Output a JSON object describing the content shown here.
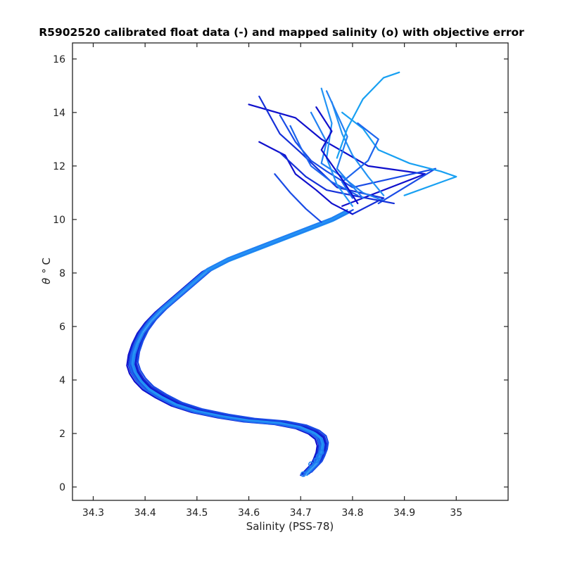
{
  "chart_data": {
    "type": "line",
    "title": "R5902520 calibrated float data (-) and mapped salinity (o) with objective error",
    "xlabel": "Salinity (PSS-78)",
    "ylabel_symbol": "θ",
    "ylabel_unit": "° C",
    "xlim": [
      34.26,
      35.1
    ],
    "ylim": [
      -0.5,
      16.6
    ],
    "xticks": [
      34.3,
      34.4,
      34.5,
      34.6,
      34.7,
      34.8,
      34.9,
      35
    ],
    "xtick_labels": [
      "34.3",
      "34.4",
      "34.5",
      "34.6",
      "34.7",
      "34.8",
      "34.9",
      "35"
    ],
    "yticks": [
      0,
      2,
      4,
      6,
      8,
      10,
      12,
      14,
      16
    ],
    "ytick_labels": [
      "0",
      "2",
      "4",
      "6",
      "8",
      "10",
      "12",
      "14",
      "16"
    ],
    "grid": false,
    "colors": [
      "#1010cc",
      "#1530d8",
      "#1a4ce6",
      "#1e66ee",
      "#2180f2",
      "#2394f4",
      "#18a0f2"
    ],
    "deep_profile": {
      "salinity": [
        34.71,
        34.72,
        34.73,
        34.735,
        34.74,
        34.742,
        34.738,
        34.725,
        34.7,
        34.66,
        34.6,
        34.55,
        34.5,
        34.46,
        34.43,
        34.405,
        34.39,
        34.38,
        34.375,
        34.378,
        34.385,
        34.395,
        34.41,
        34.43,
        34.46,
        34.49,
        34.52,
        34.56,
        34.6,
        34.64,
        34.68,
        34.72,
        34.76,
        34.79
      ],
      "theta": [
        0.5,
        0.7,
        0.9,
        1.1,
        1.35,
        1.6,
        1.85,
        2.05,
        2.25,
        2.4,
        2.5,
        2.65,
        2.85,
        3.1,
        3.4,
        3.7,
        4.0,
        4.3,
        4.6,
        5.0,
        5.4,
        5.8,
        6.2,
        6.6,
        7.1,
        7.6,
        8.1,
        8.5,
        8.8,
        9.1,
        9.4,
        9.7,
        10.0,
        10.3
      ]
    },
    "upper_profiles": [
      {
        "salinity": [
          34.6,
          34.69,
          34.74,
          34.83,
          34.94,
          34.78
        ],
        "theta": [
          14.3,
          13.8,
          13.0,
          12.0,
          11.7,
          10.5
        ]
      },
      {
        "salinity": [
          34.62,
          34.66,
          34.7,
          34.77,
          34.86,
          34.8
        ],
        "theta": [
          14.6,
          13.2,
          12.5,
          11.2,
          10.8,
          10.2
        ]
      },
      {
        "salinity": [
          34.66,
          34.69,
          34.72,
          34.75,
          34.8,
          34.96,
          34.85
        ],
        "theta": [
          13.9,
          12.9,
          12.2,
          11.8,
          11.2,
          11.9,
          10.6
        ]
      },
      {
        "salinity": [
          34.68,
          34.7,
          34.72,
          34.76,
          34.81
        ],
        "theta": [
          13.5,
          12.7,
          12.0,
          11.4,
          10.9
        ]
      },
      {
        "salinity": [
          34.72,
          34.75,
          34.74,
          34.78,
          34.82,
          34.86
        ],
        "theta": [
          14.0,
          12.9,
          12.1,
          11.6,
          11.0,
          10.7
        ]
      },
      {
        "salinity": [
          34.76,
          34.78,
          34.8,
          34.83,
          34.86
        ],
        "theta": [
          14.4,
          13.2,
          12.4,
          11.6,
          10.9
        ]
      },
      {
        "salinity": [
          34.78,
          34.82,
          34.85,
          34.91,
          34.97,
          35.0,
          34.9
        ],
        "theta": [
          14.0,
          13.4,
          12.6,
          12.1,
          11.8,
          11.6,
          10.9
        ]
      },
      {
        "salinity": [
          34.62,
          34.67,
          34.69,
          34.73,
          34.76,
          34.8
        ],
        "theta": [
          12.9,
          12.4,
          11.7,
          11.1,
          10.6,
          10.2
        ]
      },
      {
        "salinity": [
          34.66,
          34.71,
          34.75,
          34.8,
          34.88
        ],
        "theta": [
          12.5,
          11.6,
          11.1,
          10.9,
          10.6
        ]
      },
      {
        "salinity": [
          34.65,
          34.68,
          34.71,
          34.74
        ],
        "theta": [
          11.7,
          11.0,
          10.4,
          9.9
        ]
      },
      {
        "salinity": [
          34.81,
          34.85,
          34.83,
          34.78,
          34.8
        ],
        "theta": [
          13.6,
          13.0,
          12.2,
          11.4,
          10.8
        ]
      },
      {
        "salinity": [
          34.75,
          34.79,
          34.77,
          34.82
        ],
        "theta": [
          14.8,
          13.1,
          11.9,
          10.8
        ]
      },
      {
        "salinity": [
          34.74,
          34.76,
          34.75,
          34.77,
          34.8
        ],
        "theta": [
          14.9,
          13.6,
          12.3,
          11.3,
          10.5
        ]
      },
      {
        "salinity": [
          34.89,
          34.86,
          34.82,
          34.79,
          34.77
        ],
        "theta": [
          15.5,
          15.3,
          14.5,
          13.4,
          12.3
        ]
      },
      {
        "salinity": [
          34.73,
          34.76,
          34.74,
          34.78,
          34.81
        ],
        "theta": [
          14.2,
          13.3,
          12.6,
          11.5,
          10.6
        ]
      }
    ]
  }
}
